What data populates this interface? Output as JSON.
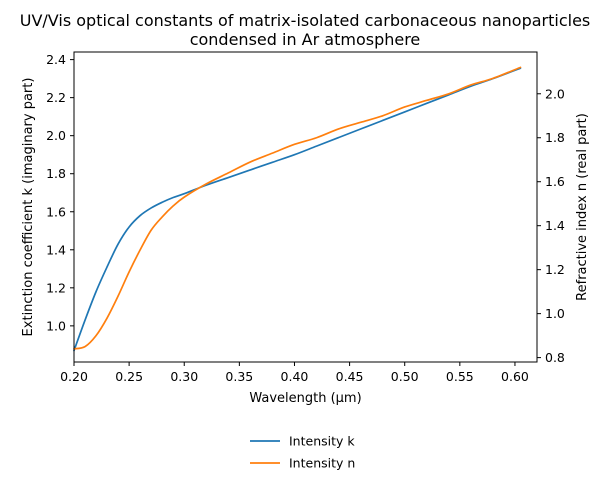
{
  "chart_data": {
    "type": "line",
    "title": "UV/Vis optical constants of matrix-isolated carbonaceous nanoparticles condensed in Ar atmosphere",
    "title_lines": [
      "UV/Vis optical constants of matrix-isolated carbonaceous nanoparticles",
      "condensed in Ar atmosphere"
    ],
    "xlabel": "Wavelength (μm)",
    "ylabel": "Extinction coefficient k (imaginary part)",
    "y2label": "Refractive index n (real part)",
    "xlim": [
      0.2,
      0.62
    ],
    "ylim": [
      0.81,
      2.44
    ],
    "y2lim": [
      0.78,
      2.19
    ],
    "x_ticks": [
      "0.20",
      "0.25",
      "0.30",
      "0.35",
      "0.40",
      "0.45",
      "0.50",
      "0.55",
      "0.60"
    ],
    "y_ticks": [
      "1.0",
      "1.2",
      "1.4",
      "1.6",
      "1.8",
      "2.0",
      "2.2",
      "2.4"
    ],
    "y2_ticks": [
      "0.8",
      "1.0",
      "1.2",
      "1.4",
      "1.6",
      "1.8",
      "2.0"
    ],
    "grid": false,
    "legend_position": "bottom-center, below the plot",
    "series": [
      {
        "name": "Intensity k",
        "axis": "left",
        "color": "#1f77b4",
        "x": [
          0.2,
          0.21,
          0.22,
          0.23,
          0.24,
          0.25,
          0.26,
          0.27,
          0.28,
          0.29,
          0.3,
          0.32,
          0.34,
          0.36,
          0.38,
          0.4,
          0.42,
          0.44,
          0.46,
          0.48,
          0.5,
          0.52,
          0.54,
          0.56,
          0.58,
          0.605
        ],
        "values": [
          0.87,
          1.03,
          1.18,
          1.31,
          1.43,
          1.52,
          1.58,
          1.62,
          1.65,
          1.675,
          1.695,
          1.74,
          1.78,
          1.82,
          1.86,
          1.9,
          1.945,
          1.99,
          2.035,
          2.08,
          2.125,
          2.17,
          2.215,
          2.26,
          2.3,
          2.355
        ]
      },
      {
        "name": "Intensity n",
        "axis": "right",
        "color": "#ff7f0e",
        "x": [
          0.2,
          0.21,
          0.22,
          0.23,
          0.24,
          0.25,
          0.26,
          0.27,
          0.28,
          0.29,
          0.3,
          0.32,
          0.34,
          0.36,
          0.38,
          0.4,
          0.42,
          0.44,
          0.46,
          0.48,
          0.5,
          0.52,
          0.54,
          0.56,
          0.58,
          0.605
        ],
        "values": [
          0.84,
          0.85,
          0.9,
          0.98,
          1.08,
          1.19,
          1.29,
          1.38,
          1.44,
          1.49,
          1.53,
          1.59,
          1.64,
          1.69,
          1.73,
          1.77,
          1.8,
          1.84,
          1.87,
          1.9,
          1.94,
          1.97,
          2.0,
          2.04,
          2.07,
          2.12
        ]
      }
    ]
  }
}
